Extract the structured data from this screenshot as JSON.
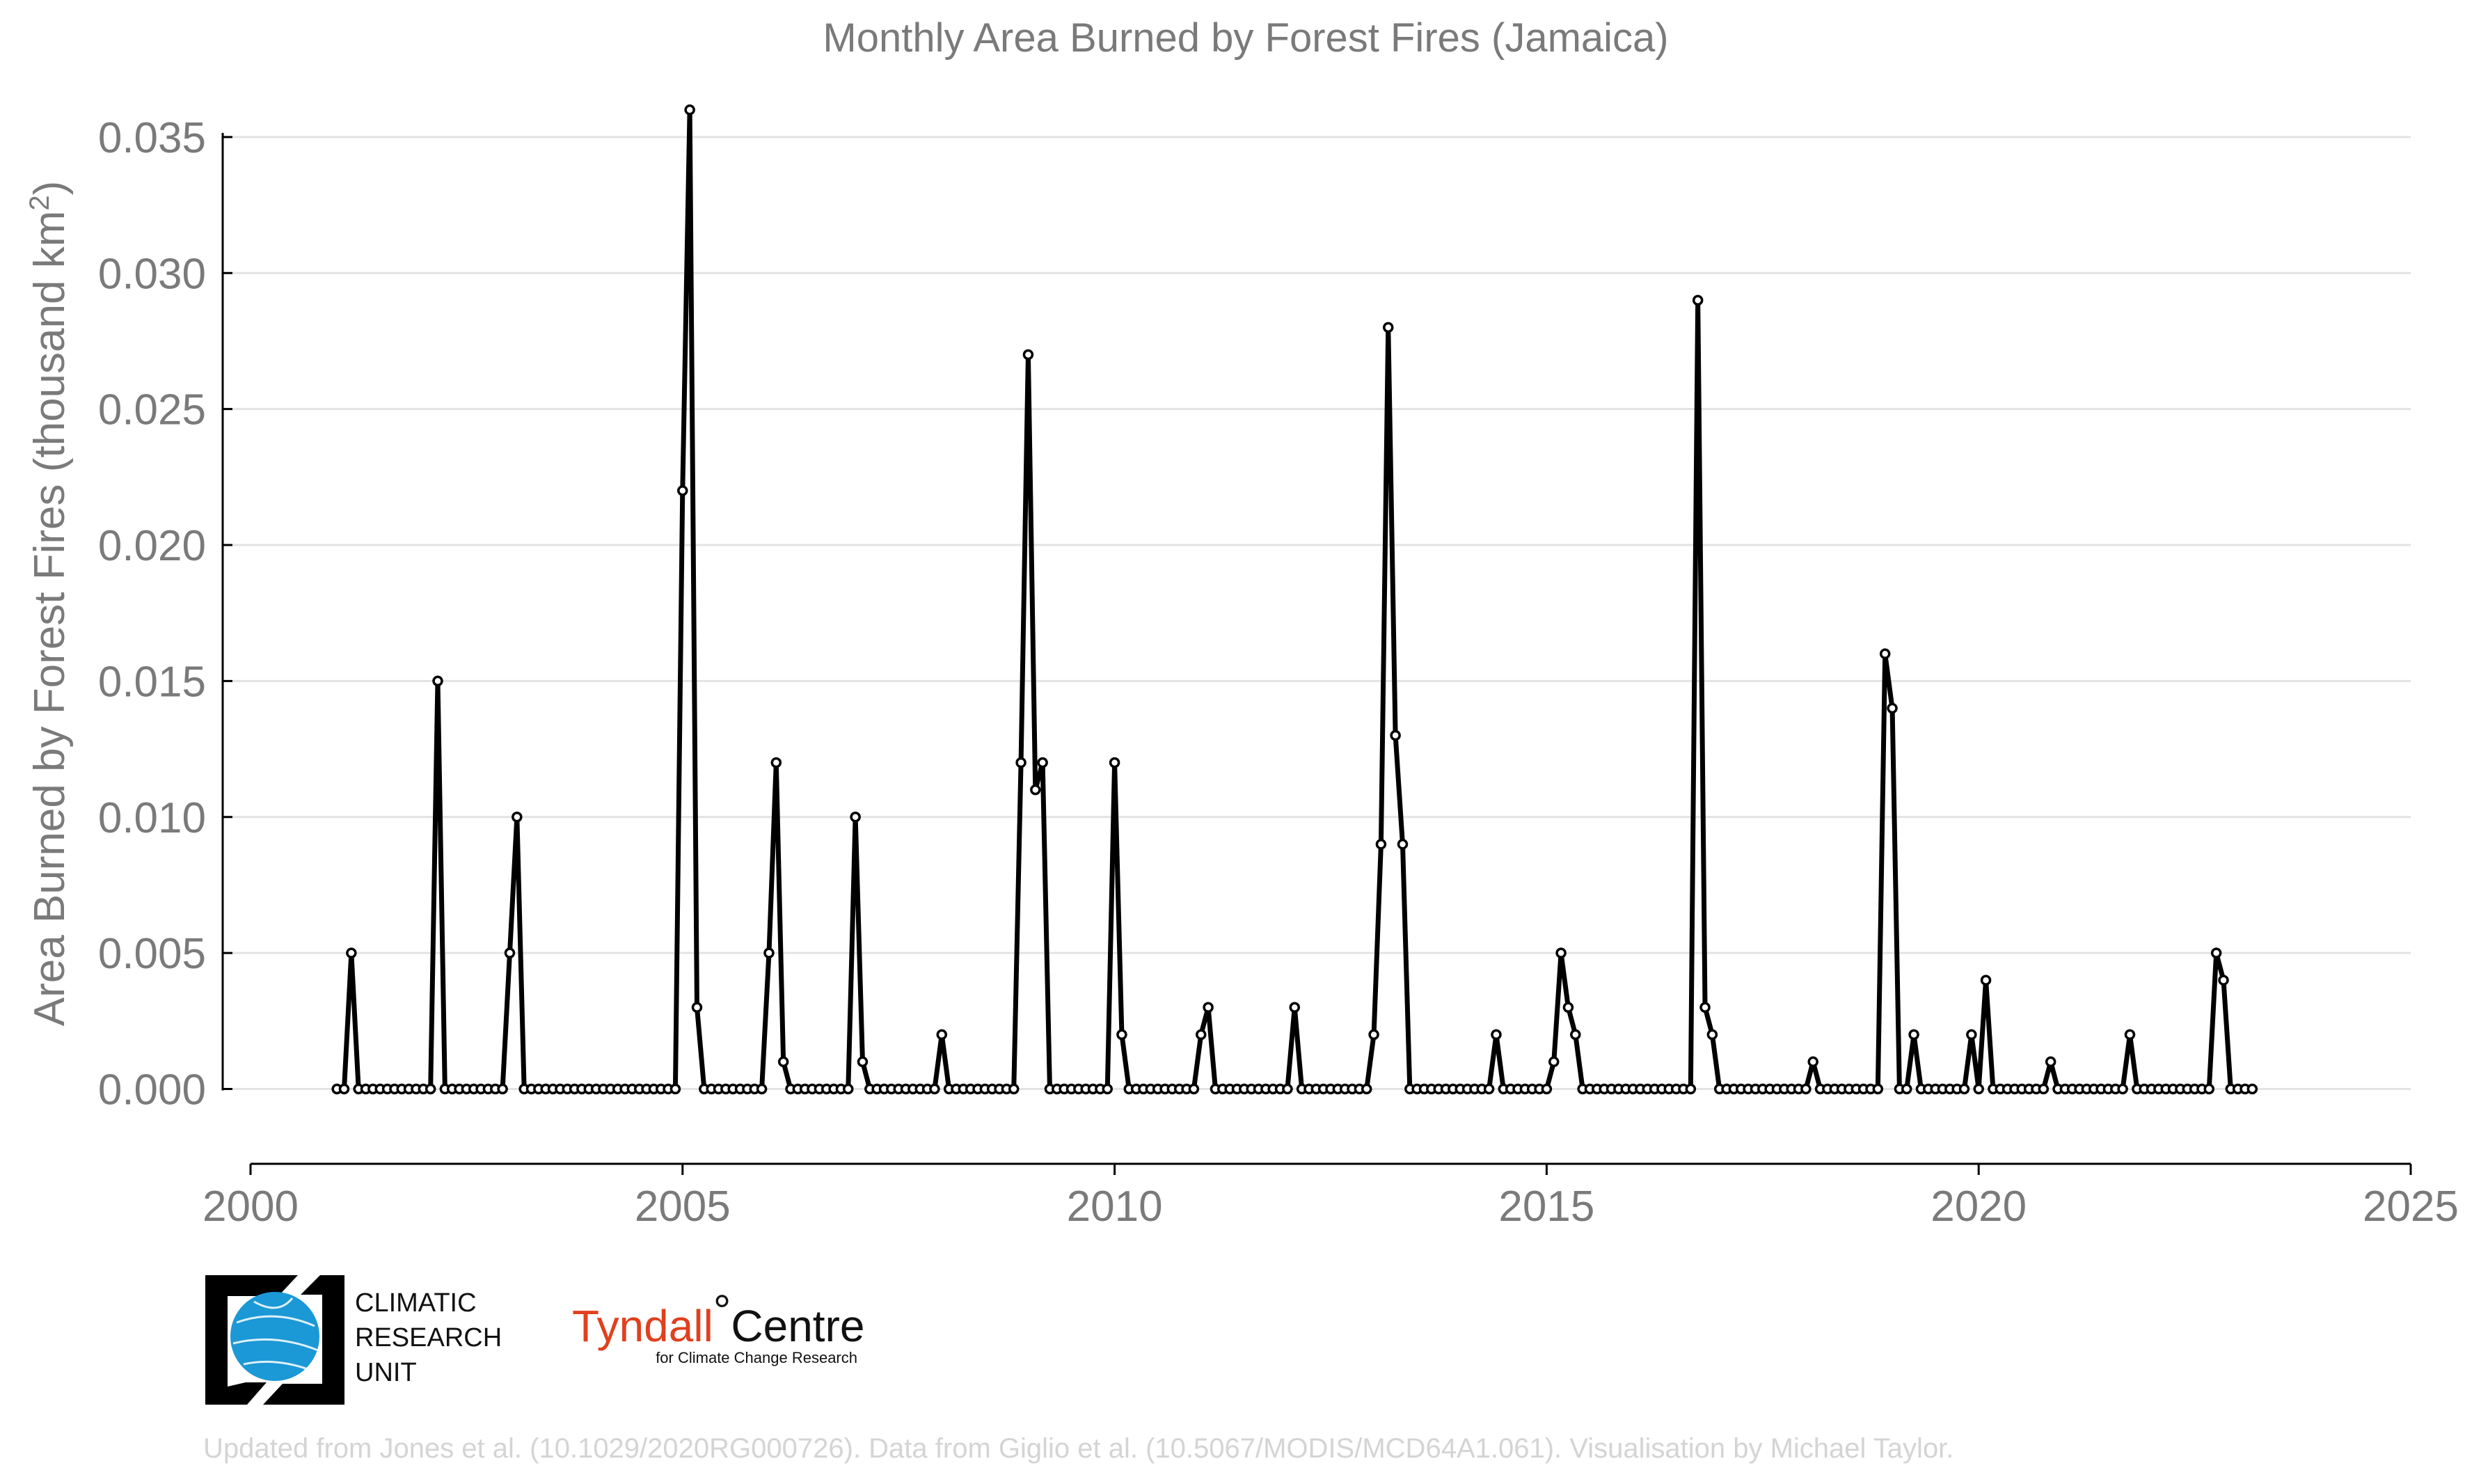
{
  "chart_data": {
    "type": "line",
    "title": "Monthly Area Burned by Forest Fires (Jamaica)",
    "ylabel": "Area Burned by Forest Fires (thousand km",
    "ylabel_sup": "2",
    "ylabel_end": ")",
    "xlim": [
      2000,
      2025
    ],
    "ylim": [
      -0.0027,
      0.0362
    ],
    "x_ticks": [
      2000,
      2005,
      2010,
      2015,
      2020,
      2025
    ],
    "x_tick_labels": [
      "2000",
      "2005",
      "2010",
      "2015",
      "2020",
      "2025"
    ],
    "y_ticks": [
      0,
      0.005,
      0.01,
      0.015,
      0.02,
      0.025,
      0.03,
      0.035
    ],
    "y_tick_labels": [
      "0.000",
      "0.005",
      "0.010",
      "0.015",
      "0.020",
      "0.025",
      "0.030",
      "0.035"
    ],
    "grid": "horizontal",
    "series_color": "#000000",
    "series": [
      {
        "start": "2001-01",
        "frequency": "monthly",
        "values": [
          0,
          0,
          0.005,
          0,
          0,
          0,
          0,
          0,
          0,
          0,
          0,
          0,
          0,
          0,
          0.015,
          0,
          0,
          0,
          0,
          0,
          0,
          0,
          0,
          0,
          0.005,
          0.01,
          0,
          0,
          0,
          0,
          0,
          0,
          0,
          0,
          0,
          0,
          0,
          0,
          0,
          0,
          0,
          0,
          0,
          0,
          0,
          0,
          0,
          0,
          0.022,
          0.036,
          0.003,
          0,
          0,
          0,
          0,
          0,
          0,
          0,
          0,
          0,
          0.005,
          0.012,
          0.001,
          0,
          0,
          0,
          0,
          0,
          0,
          0,
          0,
          0,
          0.01,
          0.001,
          0,
          0,
          0,
          0,
          0,
          0,
          0,
          0,
          0,
          0,
          0.002,
          0,
          0,
          0,
          0,
          0,
          0,
          0,
          0,
          0,
          0,
          0.012,
          0.027,
          0.011,
          0.012,
          0,
          0,
          0,
          0,
          0,
          0,
          0,
          0,
          0,
          0.012,
          0.002,
          0,
          0,
          0,
          0,
          0,
          0,
          0,
          0,
          0,
          0,
          0.002,
          0.003,
          0,
          0,
          0,
          0,
          0,
          0,
          0,
          0,
          0,
          0,
          0,
          0.003,
          0,
          0,
          0,
          0,
          0,
          0,
          0,
          0,
          0,
          0,
          0.002,
          0.009,
          0.028,
          0.013,
          0.009,
          0,
          0,
          0,
          0,
          0,
          0,
          0,
          0,
          0,
          0,
          0,
          0,
          0.002,
          0,
          0,
          0,
          0,
          0,
          0,
          0,
          0.001,
          0.005,
          0.003,
          0.002,
          0,
          0,
          0,
          0,
          0,
          0,
          0,
          0,
          0,
          0,
          0,
          0,
          0,
          0,
          0,
          0,
          0.029,
          0.003,
          0.002,
          0,
          0,
          0,
          0,
          0,
          0,
          0,
          0,
          0,
          0,
          0,
          0,
          0,
          0.001,
          0,
          0,
          0,
          0,
          0,
          0,
          0,
          0,
          0,
          0.016,
          0.014,
          0,
          0,
          0.002,
          0,
          0,
          0,
          0,
          0,
          0,
          0,
          0.002,
          0,
          0.004,
          0,
          0,
          0,
          0,
          0,
          0,
          0,
          0,
          0.001,
          0,
          0,
          0,
          0,
          0,
          0,
          0,
          0,
          0,
          0,
          0.002,
          0,
          0,
          0,
          0,
          0,
          0,
          0,
          0,
          0,
          0,
          0,
          0.005,
          0.004,
          0,
          0,
          0,
          0
        ]
      }
    ]
  },
  "logos": {
    "cru": [
      "CLIMATIC",
      "RESEARCH",
      "UNIT"
    ],
    "cru_colors": {
      "globe": "#1b98d6",
      "frame": "#000000"
    },
    "tyndall_name": "Tyndall",
    "tyndall_degree": "°",
    "tyndall_centre": "Centre",
    "tyndall_sub": "for Climate Change Research",
    "tyndall_color": "#e0401f"
  },
  "credit": "Updated from Jones et al. (10.1029/2020RG000726). Data from Giglio et al. (10.5067/MODIS/MCD64A1.061). Visualisation by Michael Taylor."
}
